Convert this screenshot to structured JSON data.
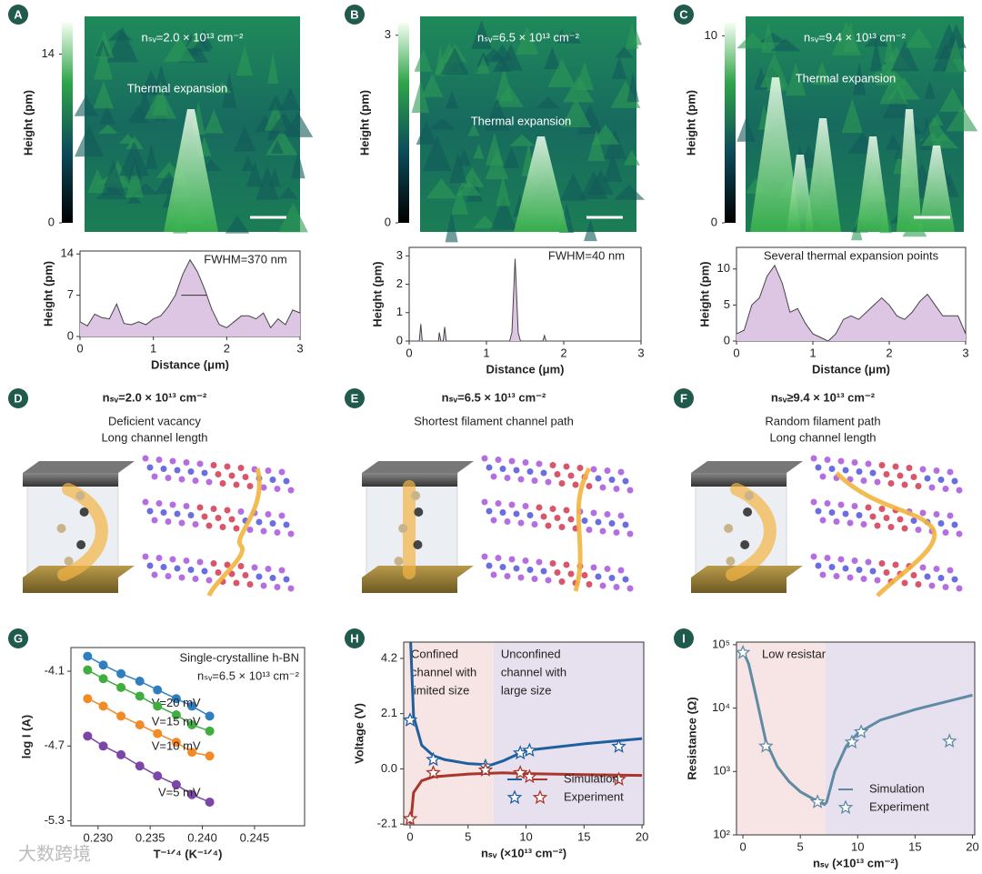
{
  "panel_labels": [
    "A",
    "B",
    "C",
    "D",
    "E",
    "F",
    "G",
    "H",
    "I"
  ],
  "maps": [
    {
      "title": "nₛᵥ=2.0 × 10¹³ cm⁻²",
      "note": "Thermal expansion",
      "cbar_label": "Height (pm)",
      "cbar_lim": [
        0,
        16.6
      ],
      "cbar_ticks": [
        0,
        14
      ]
    },
    {
      "title": "nₛᵥ=6.5 × 10¹³ cm⁻²",
      "note": "Thermal expansion",
      "cbar_label": "Height (pm)",
      "cbar_lim": [
        0,
        3.2
      ],
      "cbar_ticks": [
        0,
        3
      ]
    },
    {
      "title": "nₛᵥ=9.4 × 10¹³ cm⁻²",
      "note": "Thermal expansion",
      "cbar_label": "Height (pm)",
      "cbar_lim": [
        0,
        10.7
      ],
      "cbar_ticks": [
        0,
        10
      ]
    }
  ],
  "schematics": [
    {
      "title": "nₛᵥ=2.0 × 10¹³ cm⁻²",
      "lines": [
        "Deficient vacancy",
        "Long channel length"
      ]
    },
    {
      "title": "nₛᵥ=6.5 × 10¹³ cm⁻²",
      "lines": [
        "Shortest filament channel path"
      ]
    },
    {
      "title": "nₛᵥ≥9.4 × 10¹³ cm⁻²",
      "lines": [
        "Random filament path",
        "Long channel length"
      ]
    }
  ],
  "watermark": "大数跨境",
  "chart_data": [
    {
      "type": "area",
      "annotation": "FWHM=370 nm",
      "xlabel": "Distance (μm)",
      "ylabel": "Height (pm)",
      "color": "#dcc6e3",
      "x": [
        0,
        0.1,
        0.2,
        0.3,
        0.4,
        0.5,
        0.6,
        0.7,
        0.8,
        0.9,
        1.0,
        1.1,
        1.2,
        1.3,
        1.4,
        1.5,
        1.6,
        1.7,
        1.8,
        1.9,
        2.0,
        2.1,
        2.2,
        2.3,
        2.4,
        2.5,
        2.6,
        2.7,
        2.8,
        2.9,
        3.0
      ],
      "values": [
        2.5,
        1.8,
        3.8,
        3.2,
        3.0,
        5.5,
        2.2,
        2.0,
        2.5,
        2.0,
        3.0,
        3.5,
        5.0,
        7.0,
        10.5,
        13.0,
        11.0,
        8.0,
        4.5,
        2.0,
        1.5,
        2.5,
        3.5,
        3.5,
        3.0,
        4.0,
        1.5,
        3.0,
        2.0,
        4.5,
        4.0
      ],
      "xlim": [
        0,
        3
      ],
      "ylim": [
        0,
        14.5
      ],
      "xticks": [
        0,
        1,
        2,
        3
      ],
      "yticks": [
        0,
        7,
        14
      ]
    },
    {
      "type": "area",
      "annotation": "FWHM=40 nm",
      "xlabel": "Distance (μm)",
      "ylabel": "Height (pm)",
      "color": "#dcc6e3",
      "x": [
        0,
        0.13,
        0.15,
        0.17,
        0.38,
        0.39,
        0.41,
        0.44,
        0.46,
        0.48,
        1.3,
        1.33,
        1.37,
        1.41,
        1.44,
        1.73,
        1.75,
        1.77,
        3
      ],
      "values": [
        0,
        0,
        0.6,
        0,
        0,
        0.3,
        0,
        0,
        0.5,
        0,
        0,
        0.3,
        2.9,
        0.3,
        0,
        0,
        0.2,
        0,
        0
      ],
      "xlim": [
        0,
        3
      ],
      "ylim": [
        0,
        3.3
      ],
      "xticks": [
        0,
        1,
        2,
        3
      ],
      "yticks": [
        0,
        1,
        2,
        3
      ]
    },
    {
      "type": "area",
      "annotation": "Several thermal expansion points",
      "xlabel": "Distance (μm)",
      "ylabel": "Height (pm)",
      "color": "#dcc6e3",
      "x": [
        0,
        0.1,
        0.2,
        0.3,
        0.4,
        0.5,
        0.6,
        0.7,
        0.8,
        0.9,
        1.0,
        1.1,
        1.2,
        1.3,
        1.4,
        1.5,
        1.6,
        1.7,
        1.8,
        1.9,
        2.0,
        2.1,
        2.2,
        2.3,
        2.4,
        2.5,
        2.6,
        2.7,
        2.8,
        2.9,
        3.0
      ],
      "values": [
        1,
        1.5,
        5,
        6,
        9,
        10.5,
        8,
        4,
        4.5,
        2.5,
        1,
        0.5,
        0,
        1,
        3,
        3.5,
        3,
        4,
        5,
        6,
        5,
        3.5,
        3,
        4,
        5.5,
        6.5,
        5,
        3.5,
        3.5,
        3.5,
        1
      ],
      "xlim": [
        0,
        3
      ],
      "ylim": [
        0,
        13
      ],
      "xticks": [
        0,
        1,
        2,
        3
      ],
      "yticks": [
        0,
        5,
        10
      ]
    },
    {
      "type": "line",
      "annotations": [
        "Single-crystalline h-BN",
        "nₛᵥ=6.5 × 10¹³ cm⁻²"
      ],
      "xlabel": "T⁻¹ᐟ⁴ (K⁻¹ᐟ⁴)",
      "ylabel": "log I (A)",
      "x": [
        0.229,
        0.2305,
        0.2322,
        0.234,
        0.2357,
        0.2375,
        0.239,
        0.2407
      ],
      "series": [
        {
          "name": "V=20 mV",
          "color": "#2f7fc0",
          "values": [
            -3.98,
            -4.05,
            -4.12,
            -4.18,
            -4.25,
            -4.32,
            -4.38,
            -4.46
          ]
        },
        {
          "name": "V=15 mV",
          "color": "#3fae3f",
          "values": [
            -4.09,
            -4.16,
            -4.23,
            -4.3,
            -4.38,
            -4.45,
            -4.53,
            -4.58
          ]
        },
        {
          "name": "V=10 mV",
          "color": "#f28a25",
          "values": [
            -4.32,
            -4.38,
            -4.46,
            -4.53,
            -4.6,
            -4.67,
            -4.75,
            -4.78
          ]
        },
        {
          "name": "V=5 mV",
          "color": "#7b45aa",
          "values": [
            -4.62,
            -4.7,
            -4.77,
            -4.86,
            -4.94,
            -5.01,
            -5.09,
            -5.15
          ]
        }
      ],
      "xlim": [
        0.2274,
        0.2498
      ],
      "ylim": [
        -5.34,
        -3.91
      ],
      "xticks": [
        {
          "value": 0.23,
          "label": "0.230"
        },
        0.235,
        {
          "value": 0.24,
          "label": "0.240"
        },
        0.245
      ],
      "yticks": [
        -5.3,
        -4.7,
        -4.1
      ]
    },
    {
      "type": "curves",
      "xlabel": "nₛᵥ (×10¹³ cm⁻²)",
      "ylabel": "Voltage (V)",
      "regions": [
        {
          "xmin": -0.55,
          "xmax": 7.2,
          "color": "#f7e4e4",
          "lines": [
            "Confined",
            "channel with",
            "limited size"
          ]
        },
        {
          "xmin": 7.2,
          "xmax": 20.15,
          "color": "#e7e1ef",
          "lines": [
            "Unconfined",
            "channel with",
            "large size"
          ]
        }
      ],
      "series": [
        {
          "style": "line",
          "color": "#1f5f9e",
          "x": [
            0.05,
            0.3,
            1,
            2,
            3,
            5,
            7,
            8,
            10,
            15,
            20
          ],
          "values": [
            4.8,
            2.0,
            0.9,
            0.5,
            0.35,
            0.2,
            0.15,
            0.3,
            0.7,
            0.95,
            1.15
          ]
        },
        {
          "style": "line",
          "color": "#a8362b",
          "x": [
            0.05,
            0.3,
            1,
            2,
            5,
            8,
            10,
            15,
            20
          ],
          "values": [
            -2.1,
            -0.9,
            -0.45,
            -0.3,
            -0.2,
            -0.15,
            -0.18,
            -0.22,
            -0.25
          ]
        },
        {
          "style": "star",
          "color": "#1f5f9e",
          "x": [
            0,
            2,
            6.5,
            9.5,
            10.3,
            18
          ],
          "values": [
            1.85,
            0.35,
            0.1,
            0.6,
            0.7,
            0.85
          ]
        },
        {
          "style": "star",
          "color": "#a8362b",
          "x": [
            0,
            2,
            6.5,
            9.5,
            10.3,
            18
          ],
          "values": [
            -1.9,
            -0.15,
            -0.05,
            -0.15,
            -0.3,
            -0.4
          ]
        }
      ],
      "legend": [
        {
          "label": "Simulation",
          "style": "line"
        },
        {
          "label": "Experiment",
          "style": "star"
        }
      ],
      "legend_corner": "lower right",
      "xlim": [
        -0.55,
        20.15
      ],
      "ylim": [
        -2.13,
        4.82
      ],
      "xticks": [
        0,
        5,
        10,
        15,
        20
      ],
      "yticks": [
        -2.1,
        {
          "value": 0,
          "label": "0.0"
        },
        2.1,
        4.2
      ]
    },
    {
      "type": "curves",
      "xlabel": "nₛᵥ (×10¹³ cm⁻²)",
      "ylabel": "Resistance (Ω)",
      "log_y": true,
      "regions": [
        {
          "xmin": -0.56,
          "xmax": 7.2,
          "color": "#f7e4e4",
          "lines": [
            "Low resistance state"
          ]
        },
        {
          "xmin": 7.2,
          "xmax": 20.2,
          "color": "#e7e1ef"
        }
      ],
      "series": [
        {
          "style": "line",
          "color": "#5f8aa3",
          "x": [
            0,
            0.5,
            1,
            2,
            3,
            4,
            5,
            6,
            7,
            7.1,
            7.3,
            8,
            9,
            10,
            12,
            15,
            18,
            20
          ],
          "values": [
            80000,
            50000,
            20000,
            3000,
            1200,
            700,
            480,
            380,
            310,
            300,
            330,
            1000,
            2500,
            4000,
            6500,
            9500,
            13000,
            16000
          ]
        },
        {
          "style": "star",
          "color": "#5f8aa3",
          "x": [
            0,
            2,
            6.5,
            9.5,
            10.3,
            18
          ],
          "values": [
            75000,
            2500,
            330,
            2900,
            4200,
            3000
          ]
        }
      ],
      "legend": [
        {
          "label": "Simulation",
          "style": "line"
        },
        {
          "label": "Experiment",
          "style": "star"
        }
      ],
      "legend_corner": "lower right",
      "xlim": [
        -0.56,
        20.2
      ],
      "ylim": [
        100,
        110000
      ],
      "xticks": [
        0,
        5,
        10,
        15,
        20
      ],
      "yticks": [
        {
          "value": 100,
          "label": "10²"
        },
        {
          "value": 1000,
          "label": "10³"
        },
        {
          "value": 10000,
          "label": "10⁴"
        },
        {
          "value": 100000,
          "label": "10⁵"
        }
      ]
    }
  ]
}
